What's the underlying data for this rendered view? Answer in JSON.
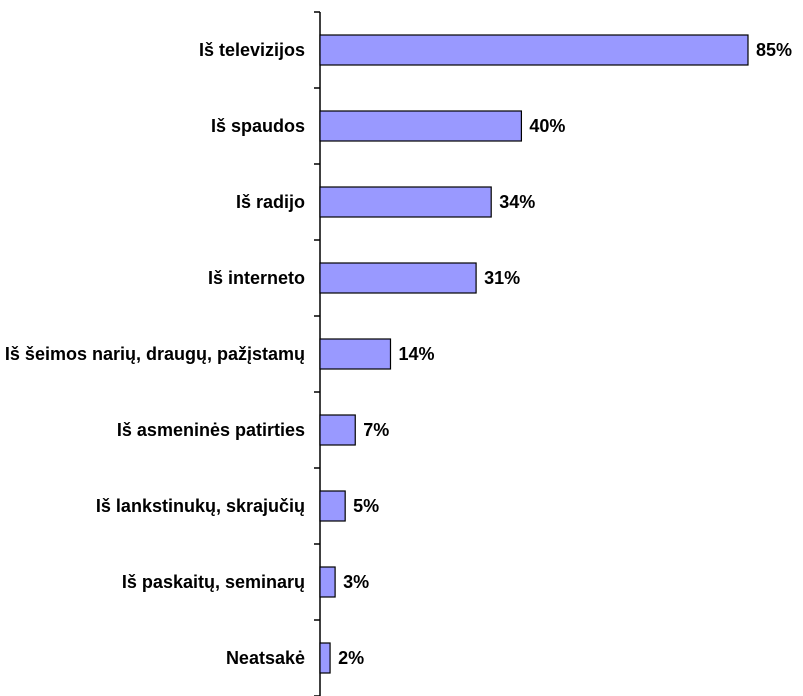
{
  "chart_data": {
    "type": "bar",
    "orientation": "horizontal",
    "categories": [
      "Iš televizijos",
      "Iš spaudos",
      "Iš radijo",
      "Iš interneto",
      "Iš šeimos narių, draugų, pažįstamų",
      "Iš asmeninės patirties",
      "Iš lankstinukų, skrajučių",
      "Iš paskaitų, seminarų",
      "Neatsakė"
    ],
    "values": [
      85,
      40,
      34,
      31,
      14,
      7,
      5,
      3,
      2
    ],
    "value_labels": [
      "85%",
      "40%",
      "34%",
      "31%",
      "14%",
      "7%",
      "5%",
      "3%",
      "2%"
    ],
    "color": "#9999ff"
  }
}
